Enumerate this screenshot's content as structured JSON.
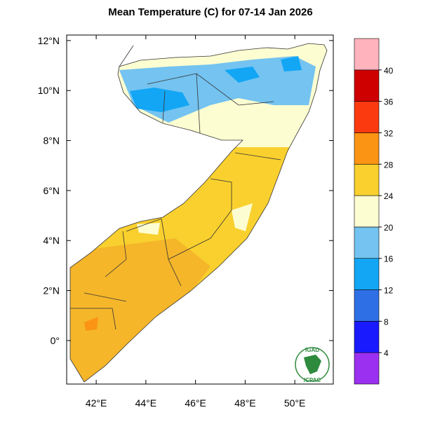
{
  "title": "Mean Temperature (C) for 07-14 Jan 2026",
  "map": {
    "lon_range": [
      40.81,
      51.55
    ],
    "lat_range": [
      -1.74,
      12.22
    ],
    "lon_ticks": [
      {
        "value": 42,
        "label": "42°E"
      },
      {
        "value": 44,
        "label": "44°E"
      },
      {
        "value": 46,
        "label": "46°E"
      },
      {
        "value": 48,
        "label": "48°E"
      },
      {
        "value": 50,
        "label": "50°E"
      }
    ],
    "lat_ticks": [
      {
        "value": 12,
        "label": "12°N"
      },
      {
        "value": 10,
        "label": "10°N"
      },
      {
        "value": 8,
        "label": "8°N"
      },
      {
        "value": 6,
        "label": "6°N"
      },
      {
        "value": 4,
        "label": "4°N"
      },
      {
        "value": 2,
        "label": "2°N"
      },
      {
        "value": 0,
        "label": "0°"
      }
    ]
  },
  "colorbar": {
    "levels": [
      4,
      8,
      12,
      16,
      20,
      24,
      28,
      32,
      36,
      40
    ],
    "colors": [
      "#9b30f0",
      "#1a1aff",
      "#2f6fe6",
      "#12a6f5",
      "#74c3f0",
      "#fdfdd2",
      "#f9d02e",
      "#fb9414",
      "#fc3a10",
      "#cf0000",
      "#ffb3bd"
    ]
  },
  "logo": {
    "top": "IGAD",
    "bottom": "ICPAC"
  }
}
